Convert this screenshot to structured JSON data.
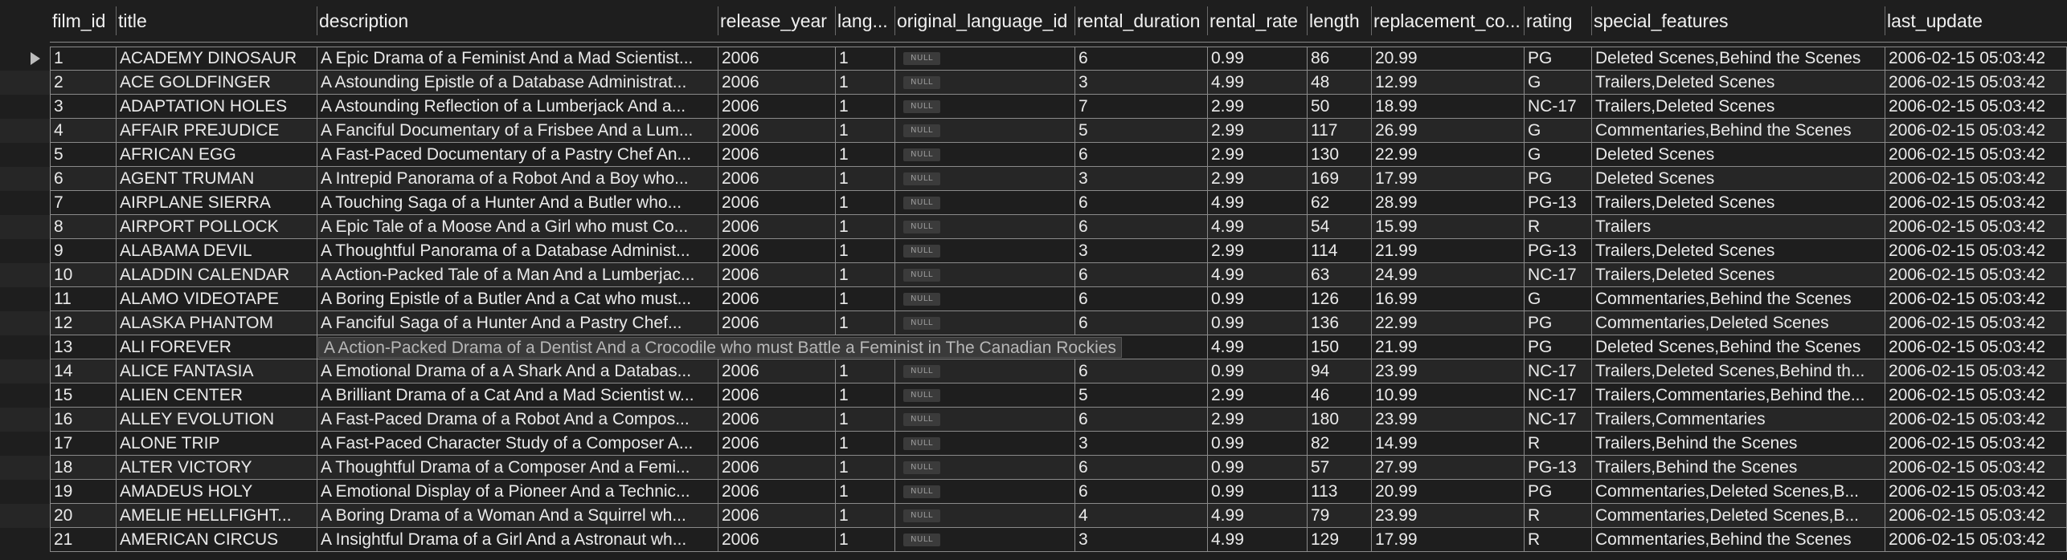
{
  "columns": [
    {
      "key": "film_id",
      "label": "film_id"
    },
    {
      "key": "title",
      "label": "title"
    },
    {
      "key": "description",
      "label": "description"
    },
    {
      "key": "release_year",
      "label": "release_year"
    },
    {
      "key": "lang",
      "label": "lang..."
    },
    {
      "key": "original_language_id",
      "label": "original_language_id"
    },
    {
      "key": "rental_duration",
      "label": "rental_duration"
    },
    {
      "key": "rental_rate",
      "label": "rental_rate"
    },
    {
      "key": "length",
      "label": "length"
    },
    {
      "key": "replacement_cost",
      "label": "replacement_co..."
    },
    {
      "key": "rating",
      "label": "rating"
    },
    {
      "key": "special_features",
      "label": "special_features"
    },
    {
      "key": "last_update",
      "label": "last_update"
    }
  ],
  "null_label": "NULL",
  "selected_row": 0,
  "tooltip_row": 12,
  "tooltip_text": "A Action-Packed Drama of a Dentist And a Crocodile who must Battle a Feminist in The Canadian Rockies",
  "rows": [
    [
      "1",
      "ACADEMY DINOSAUR",
      "A Epic Drama of a Feminist And a Mad Scientist...",
      "2006",
      "1",
      "NULL",
      "6",
      "0.99",
      "86",
      "20.99",
      "PG",
      "Deleted Scenes,Behind the Scenes",
      "2006-02-15 05:03:42"
    ],
    [
      "2",
      "ACE GOLDFINGER",
      "A Astounding Epistle of a Database Administrat...",
      "2006",
      "1",
      "NULL",
      "3",
      "4.99",
      "48",
      "12.99",
      "G",
      "Trailers,Deleted Scenes",
      "2006-02-15 05:03:42"
    ],
    [
      "3",
      "ADAPTATION HOLES",
      "A Astounding Reflection of a Lumberjack And a...",
      "2006",
      "1",
      "NULL",
      "7",
      "2.99",
      "50",
      "18.99",
      "NC-17",
      "Trailers,Deleted Scenes",
      "2006-02-15 05:03:42"
    ],
    [
      "4",
      "AFFAIR PREJUDICE",
      "A Fanciful Documentary of a Frisbee And a Lum...",
      "2006",
      "1",
      "NULL",
      "5",
      "2.99",
      "117",
      "26.99",
      "G",
      "Commentaries,Behind the Scenes",
      "2006-02-15 05:03:42"
    ],
    [
      "5",
      "AFRICAN EGG",
      "A Fast-Paced Documentary of a Pastry Chef An...",
      "2006",
      "1",
      "NULL",
      "6",
      "2.99",
      "130",
      "22.99",
      "G",
      "Deleted Scenes",
      "2006-02-15 05:03:42"
    ],
    [
      "6",
      "AGENT TRUMAN",
      "A Intrepid Panorama of a Robot And a Boy who...",
      "2006",
      "1",
      "NULL",
      "3",
      "2.99",
      "169",
      "17.99",
      "PG",
      "Deleted Scenes",
      "2006-02-15 05:03:42"
    ],
    [
      "7",
      "AIRPLANE SIERRA",
      "A Touching Saga of a Hunter And a Butler who...",
      "2006",
      "1",
      "NULL",
      "6",
      "4.99",
      "62",
      "28.99",
      "PG-13",
      "Trailers,Deleted Scenes",
      "2006-02-15 05:03:42"
    ],
    [
      "8",
      "AIRPORT POLLOCK",
      "A Epic Tale of a Moose And a Girl who must Co...",
      "2006",
      "1",
      "NULL",
      "6",
      "4.99",
      "54",
      "15.99",
      "R",
      "Trailers",
      "2006-02-15 05:03:42"
    ],
    [
      "9",
      "ALABAMA DEVIL",
      "A Thoughtful Panorama of a Database Administ...",
      "2006",
      "1",
      "NULL",
      "3",
      "2.99",
      "114",
      "21.99",
      "PG-13",
      "Trailers,Deleted Scenes",
      "2006-02-15 05:03:42"
    ],
    [
      "10",
      "ALADDIN CALENDAR",
      "A Action-Packed Tale of a Man And a Lumberjac...",
      "2006",
      "1",
      "NULL",
      "6",
      "4.99",
      "63",
      "24.99",
      "NC-17",
      "Trailers,Deleted Scenes",
      "2006-02-15 05:03:42"
    ],
    [
      "11",
      "ALAMO VIDEOTAPE",
      "A Boring Epistle of a Butler And a Cat who must...",
      "2006",
      "1",
      "NULL",
      "6",
      "0.99",
      "126",
      "16.99",
      "G",
      "Commentaries,Behind the Scenes",
      "2006-02-15 05:03:42"
    ],
    [
      "12",
      "ALASKA PHANTOM",
      "A Fanciful Saga of a Hunter And a Pastry Chef...",
      "2006",
      "1",
      "NULL",
      "6",
      "0.99",
      "136",
      "22.99",
      "PG",
      "Commentaries,Deleted Scenes",
      "2006-02-15 05:03:42"
    ],
    [
      "13",
      "ALI FOREVER",
      "",
      "",
      "",
      "",
      "",
      "4.99",
      "150",
      "21.99",
      "PG",
      "Deleted Scenes,Behind the Scenes",
      "2006-02-15 05:03:42"
    ],
    [
      "14",
      "ALICE FANTASIA",
      "A Emotional Drama of a A Shark And a Databas...",
      "2006",
      "1",
      "NULL",
      "6",
      "0.99",
      "94",
      "23.99",
      "NC-17",
      "Trailers,Deleted Scenes,Behind th...",
      "2006-02-15 05:03:42"
    ],
    [
      "15",
      "ALIEN CENTER",
      "A Brilliant Drama of a Cat And a Mad Scientist w...",
      "2006",
      "1",
      "NULL",
      "5",
      "2.99",
      "46",
      "10.99",
      "NC-17",
      "Trailers,Commentaries,Behind the...",
      "2006-02-15 05:03:42"
    ],
    [
      "16",
      "ALLEY EVOLUTION",
      "A Fast-Paced Drama of a Robot And a Compos...",
      "2006",
      "1",
      "NULL",
      "6",
      "2.99",
      "180",
      "23.99",
      "NC-17",
      "Trailers,Commentaries",
      "2006-02-15 05:03:42"
    ],
    [
      "17",
      "ALONE TRIP",
      "A Fast-Paced Character Study of a Composer A...",
      "2006",
      "1",
      "NULL",
      "3",
      "0.99",
      "82",
      "14.99",
      "R",
      "Trailers,Behind the Scenes",
      "2006-02-15 05:03:42"
    ],
    [
      "18",
      "ALTER VICTORY",
      "A Thoughtful Drama of a Composer And a Femi...",
      "2006",
      "1",
      "NULL",
      "6",
      "0.99",
      "57",
      "27.99",
      "PG-13",
      "Trailers,Behind the Scenes",
      "2006-02-15 05:03:42"
    ],
    [
      "19",
      "AMADEUS HOLY",
      "A Emotional Display of a Pioneer And a Technic...",
      "2006",
      "1",
      "NULL",
      "6",
      "0.99",
      "113",
      "20.99",
      "PG",
      "Commentaries,Deleted Scenes,B...",
      "2006-02-15 05:03:42"
    ],
    [
      "20",
      "AMELIE HELLFIGHT...",
      "A Boring Drama of a Woman And a Squirrel wh...",
      "2006",
      "1",
      "NULL",
      "4",
      "4.99",
      "79",
      "23.99",
      "R",
      "Commentaries,Deleted Scenes,B...",
      "2006-02-15 05:03:42"
    ],
    [
      "21",
      "AMERICAN CIRCUS",
      "A Insightful Drama of a Girl And a Astronaut wh...",
      "2006",
      "1",
      "NULL",
      "3",
      "4.99",
      "129",
      "17.99",
      "R",
      "Commentaries,Behind the Scenes",
      "2006-02-15 05:03:42"
    ]
  ]
}
